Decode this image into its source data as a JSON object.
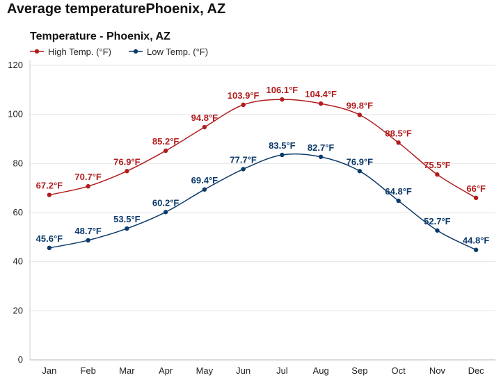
{
  "page": {
    "heading": "Average temperaturePhoenix, AZ"
  },
  "chart_data": {
    "type": "line",
    "title": "Temperature - Phoenix, AZ",
    "xlabel": "",
    "ylabel": "",
    "ylim": [
      0,
      120
    ],
    "yticks": [
      0,
      20,
      40,
      60,
      80,
      100,
      120
    ],
    "grid": true,
    "legend_position": "top-left",
    "categories": [
      "Jan",
      "Feb",
      "Mar",
      "Apr",
      "May",
      "Jun",
      "Jul",
      "Aug",
      "Sep",
      "Oct",
      "Nov",
      "Dec"
    ],
    "series": [
      {
        "name": "High Temp. (°F)",
        "color": "#b11d1d",
        "values": [
          67.2,
          70.7,
          76.9,
          85.2,
          94.8,
          103.9,
          106.1,
          104.4,
          99.8,
          88.5,
          75.5,
          66
        ],
        "labels": [
          "67.2°F",
          "70.7°F",
          "76.9°F",
          "85.2°F",
          "94.8°F",
          "103.9°F",
          "106.1°F",
          "104.4°F",
          "99.8°F",
          "88.5°F",
          "75.5°F",
          "66°F"
        ]
      },
      {
        "name": "Low Temp. (°F)",
        "color": "#0c3a6b",
        "values": [
          45.6,
          48.7,
          53.5,
          60.2,
          69.4,
          77.7,
          83.5,
          82.7,
          76.9,
          64.8,
          52.7,
          44.8
        ],
        "labels": [
          "45.6°F",
          "48.7°F",
          "53.5°F",
          "60.2°F",
          "69.4°F",
          "77.7°F",
          "83.5°F",
          "82.7°F",
          "76.9°F",
          "64.8°F",
          "52.7°F",
          "44.8°F"
        ]
      }
    ]
  }
}
